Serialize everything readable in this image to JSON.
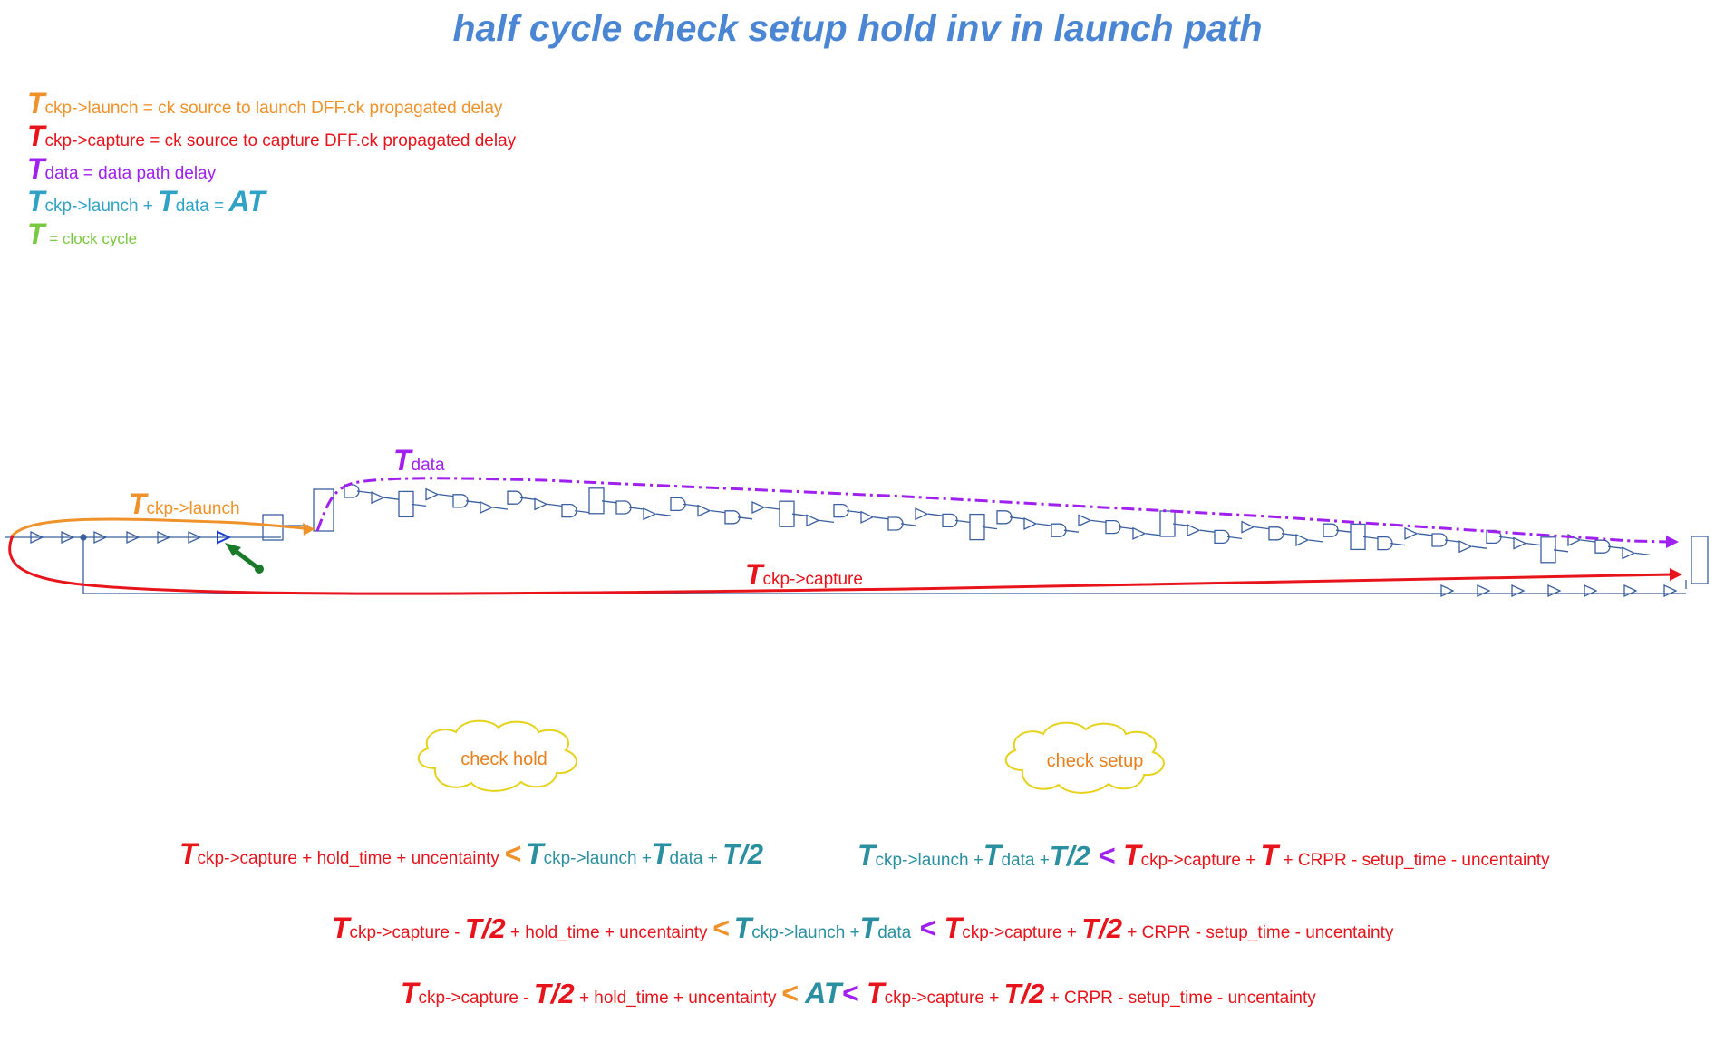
{
  "title": "half cycle check setup hold inv in launch path",
  "colors": {
    "launch": "#f0922a",
    "capture": "#e8141b",
    "data": "#a020f0",
    "at": "#2fa2c6",
    "cycle": "#7ac943",
    "teal": "#2a8fa0",
    "circuit": "#3a5fa0",
    "arrow_green": "#1a7a2a",
    "cloud_border": "#e6d21a"
  },
  "legend": [
    {
      "T": "T",
      "sub": "ckp->launch",
      "text": " = ck source to launch DFF.ck propagated delay"
    },
    {
      "T": "T",
      "sub": "ckp->capture",
      "text": " = ck source to capture DFF.ck propagated delay"
    },
    {
      "T": "T",
      "sub": "data",
      "text": " = data path delay"
    },
    {
      "T1": "T",
      "sub1": "ckp->launch",
      "plus": " + ",
      "T2": "T",
      "sub2": "data",
      "eq": " = ",
      "AT": "AT"
    },
    {
      "T": "T",
      "text": "  = clock cycle"
    }
  ],
  "diagram": {
    "label_launch_T": "T",
    "label_launch_sub": "ckp->launch",
    "label_data_T": "T",
    "label_data_sub": "data",
    "label_capture_T": "T",
    "label_capture_sub": "ckp->capture"
  },
  "clouds": {
    "hold": "check hold",
    "setup": "check setup"
  },
  "equations": {
    "hold1": {
      "T1": "T",
      "s1": "ckp->capture",
      "t1": " + hold_time + uncentainty ",
      "lt": "<",
      "T2": "T",
      "s2": "ckp->launch",
      "plus": " +",
      "T3": "T",
      "s3": "data",
      "plus2": " + ",
      "half": "T/2"
    },
    "setup1": {
      "T1": "T",
      "s1": "ckp->launch",
      "plus": " +",
      "T2": "T",
      "s2": "data",
      "plus2": " +",
      "half": "T/2",
      "lt": " < ",
      "T3": "T",
      "s3": "ckp->capture",
      "plus3": " + ",
      "T4": "T",
      "t4": " + CRPR - setup_time - uncentainty"
    },
    "both": {
      "T1": "T",
      "s1": "ckp->capture",
      "m1": " - ",
      "h1": "T/2",
      "t1": " + hold_time + uncentainty ",
      "lt1": "<",
      "T2": "T",
      "s2": "ckp->launch",
      "plus": " +",
      "T3": "T",
      "s3": "data",
      "lt2": " < ",
      "T4": "T",
      "s4": "ckp->capture",
      "p4": " + ",
      "h2": "T/2",
      "t4": " + CRPR - setup_time - uncentainty"
    },
    "at": {
      "T1": "T",
      "s1": "ckp->capture",
      "m1": " - ",
      "h1": "T/2",
      "t1": " + hold_time + uncentainty ",
      "lt1": "<",
      "AT": " AT",
      "lt2": "< ",
      "T2": "T",
      "s2": "ckp->capture",
      "p2": " + ",
      "h2": "T/2",
      "t2": " + CRPR - setup_time - uncentainty"
    }
  }
}
